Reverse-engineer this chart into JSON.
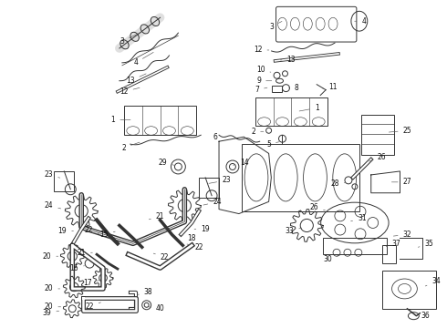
{
  "background_color": "#ffffff",
  "line_color": "#333333",
  "text_color": "#111111",
  "figsize": [
    4.9,
    3.6
  ],
  "dpi": 100,
  "label_fontsize": 5.5,
  "line_width": 0.7
}
